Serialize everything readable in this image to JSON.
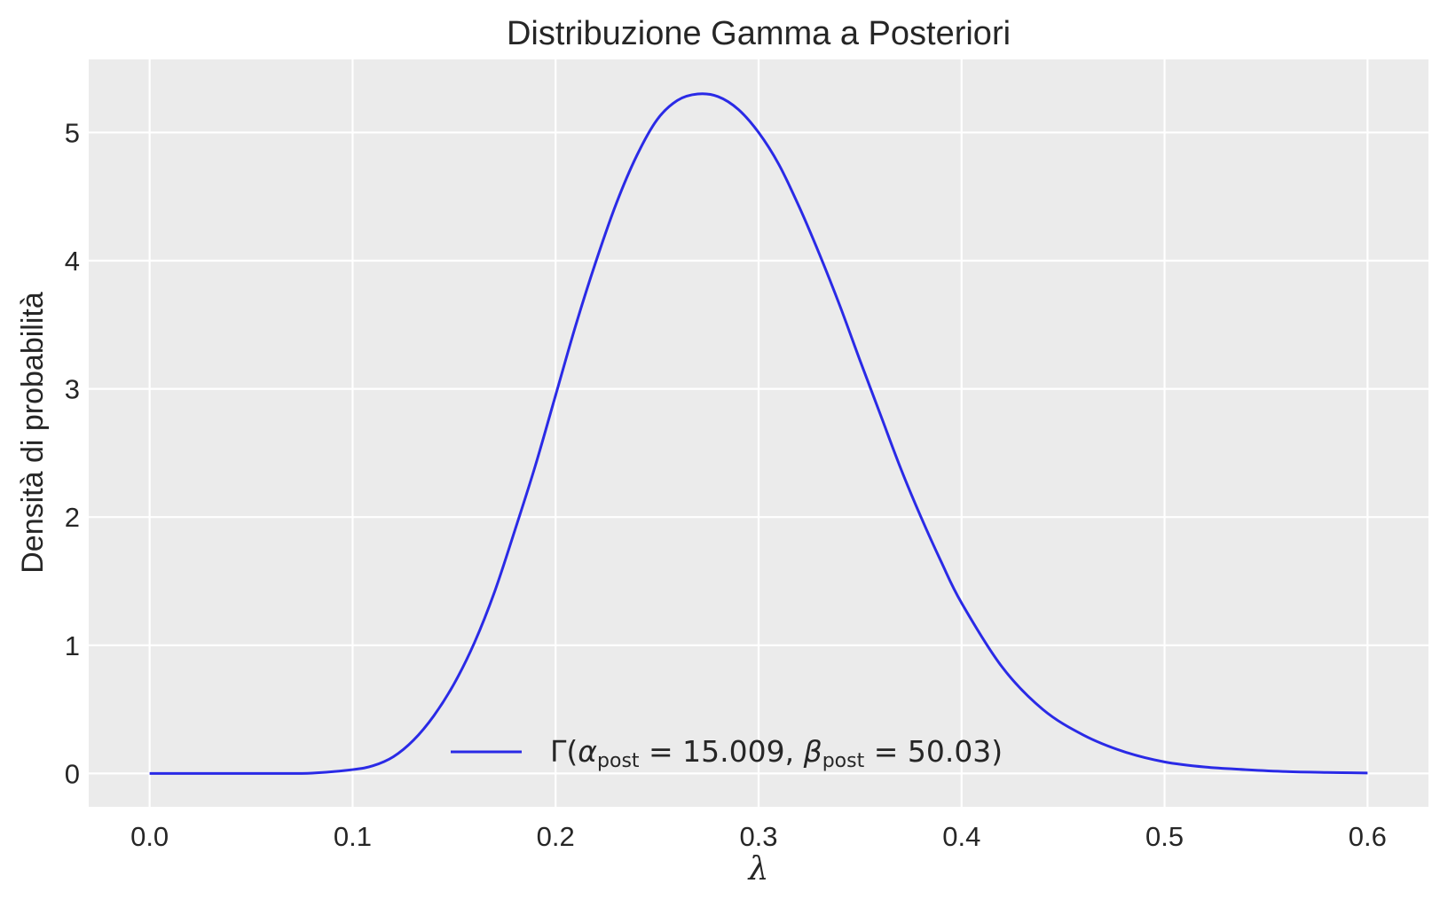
{
  "chart_data": {
    "type": "line",
    "title": "Distribuzione Gamma a Posteriori",
    "xlabel": "λ",
    "ylabel": "Densità di probabilità",
    "xlim": [
      -0.03,
      0.63
    ],
    "ylim": [
      -0.26,
      5.57
    ],
    "xticks": [
      0.0,
      0.1,
      0.2,
      0.3,
      0.4,
      0.5,
      0.6
    ],
    "xtick_labels": [
      "0.0",
      "0.1",
      "0.2",
      "0.3",
      "0.4",
      "0.5",
      "0.6"
    ],
    "yticks": [
      0,
      1,
      2,
      3,
      4,
      5
    ],
    "ytick_labels": [
      "0",
      "1",
      "2",
      "3",
      "4",
      "5"
    ],
    "grid": true,
    "legend_placement": "bottom-center",
    "background": "#ebebeb",
    "grid_color": "#ffffff",
    "series": [
      {
        "name": "Γ(α_post = 15.009, β_post = 50.03)",
        "color": "#2a2ae6",
        "x": [
          0.0,
          0.02,
          0.04,
          0.06,
          0.08,
          0.1,
          0.11,
          0.12,
          0.13,
          0.14,
          0.15,
          0.16,
          0.17,
          0.18,
          0.19,
          0.2,
          0.21,
          0.22,
          0.23,
          0.24,
          0.25,
          0.26,
          0.27,
          0.28,
          0.29,
          0.3,
          0.31,
          0.32,
          0.33,
          0.34,
          0.35,
          0.36,
          0.37,
          0.38,
          0.39,
          0.4,
          0.42,
          0.44,
          0.46,
          0.48,
          0.5,
          0.52,
          0.54,
          0.56,
          0.58,
          0.6
        ],
        "y": [
          0.0,
          0.0,
          0.0,
          0.0,
          0.003,
          0.03,
          0.06,
          0.13,
          0.26,
          0.45,
          0.7,
          1.02,
          1.42,
          1.9,
          2.4,
          2.95,
          3.5,
          4.0,
          4.45,
          4.82,
          5.1,
          5.25,
          5.3,
          5.28,
          5.18,
          5.0,
          4.75,
          4.42,
          4.05,
          3.65,
          3.22,
          2.8,
          2.38,
          2.0,
          1.65,
          1.33,
          0.83,
          0.5,
          0.3,
          0.17,
          0.09,
          0.05,
          0.03,
          0.015,
          0.008,
          0.004
        ]
      }
    ]
  },
  "legend": {
    "gamma_symbol": "Γ(",
    "alpha_symbol": "α",
    "alpha_sub": "post",
    "alpha_value": " = 15.009, ",
    "beta_symbol": "β",
    "beta_sub": "post",
    "beta_value": " = 50.03)"
  }
}
